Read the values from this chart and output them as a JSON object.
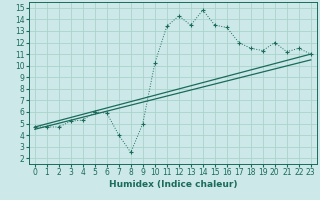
{
  "xlabel": "Humidex (Indice chaleur)",
  "background_color": "#cce8e8",
  "line_color": "#1a6b5a",
  "grid_color": "#aad4cc",
  "xlim": [
    -0.5,
    23.5
  ],
  "ylim": [
    1.5,
    15.5
  ],
  "xticks": [
    0,
    1,
    2,
    3,
    4,
    5,
    6,
    7,
    8,
    9,
    10,
    11,
    12,
    13,
    14,
    15,
    16,
    17,
    18,
    19,
    20,
    21,
    22,
    23
  ],
  "yticks": [
    2,
    3,
    4,
    5,
    6,
    7,
    8,
    9,
    10,
    11,
    12,
    13,
    14,
    15
  ],
  "curve1_x": [
    0,
    1,
    2,
    3,
    4,
    5,
    6,
    7,
    8,
    9,
    10,
    11,
    12,
    13,
    14,
    15,
    16,
    17,
    18,
    19,
    20,
    21,
    22,
    23
  ],
  "curve1_y": [
    4.7,
    4.7,
    4.7,
    5.2,
    5.3,
    6.0,
    5.9,
    4.0,
    2.5,
    5.0,
    10.2,
    13.4,
    14.3,
    13.5,
    14.8,
    13.5,
    13.3,
    12.0,
    11.5,
    11.3,
    12.0,
    11.2,
    11.5,
    11.0
  ],
  "curve2_x": [
    0,
    23
  ],
  "curve2_y": [
    4.7,
    11.0
  ],
  "curve3_x": [
    0,
    23
  ],
  "curve3_y": [
    4.5,
    10.5
  ],
  "tick_fontsize": 5.5,
  "xlabel_fontsize": 6.5,
  "xlabel_fontweight": "bold"
}
